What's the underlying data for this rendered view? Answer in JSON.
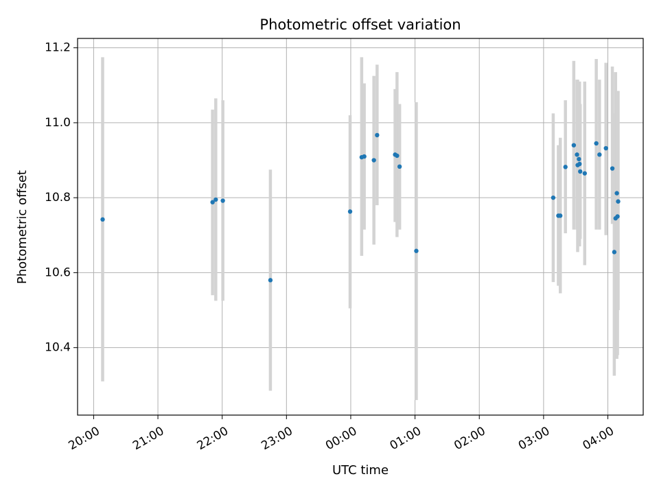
{
  "chart_data": {
    "type": "scatter",
    "title": "Photometric offset variation",
    "xlabel": "UTC time",
    "ylabel": "Photometric offset",
    "x_unit": "hours (UTC, continuing past midnight)",
    "xlim": [
      19.75,
      28.55
    ],
    "ylim": [
      10.22,
      11.225
    ],
    "x_ticks": [
      {
        "value": 20,
        "label": "20:00"
      },
      {
        "value": 21,
        "label": "21:00"
      },
      {
        "value": 22,
        "label": "22:00"
      },
      {
        "value": 23,
        "label": "23:00"
      },
      {
        "value": 24,
        "label": "00:00"
      },
      {
        "value": 25,
        "label": "01:00"
      },
      {
        "value": 26,
        "label": "02:00"
      },
      {
        "value": 27,
        "label": "03:00"
      },
      {
        "value": 28,
        "label": "04:00"
      }
    ],
    "y_ticks": [
      {
        "value": 10.4,
        "label": "10.4"
      },
      {
        "value": 10.6,
        "label": "10.6"
      },
      {
        "value": 10.8,
        "label": "10.8"
      },
      {
        "value": 11.0,
        "label": "11.0"
      },
      {
        "value": 11.2,
        "label": "11.2"
      }
    ],
    "grid": true,
    "point_color": "#1f77b4",
    "errorbar_color": "#d3d3d3",
    "points": [
      {
        "x": 20.14,
        "y": 10.742,
        "ylo": 10.31,
        "yhi": 11.175
      },
      {
        "x": 21.85,
        "y": 10.788,
        "ylo": 10.54,
        "yhi": 11.035
      },
      {
        "x": 21.9,
        "y": 10.795,
        "ylo": 10.525,
        "yhi": 11.065
      },
      {
        "x": 22.01,
        "y": 10.792,
        "ylo": 10.525,
        "yhi": 11.06
      },
      {
        "x": 22.75,
        "y": 10.58,
        "ylo": 10.285,
        "yhi": 10.875
      },
      {
        "x": 23.99,
        "y": 10.763,
        "ylo": 10.505,
        "yhi": 11.02
      },
      {
        "x": 24.17,
        "y": 10.908,
        "ylo": 10.645,
        "yhi": 11.175
      },
      {
        "x": 24.21,
        "y": 10.91,
        "ylo": 10.715,
        "yhi": 11.105
      },
      {
        "x": 24.36,
        "y": 10.9,
        "ylo": 10.675,
        "yhi": 11.125
      },
      {
        "x": 24.41,
        "y": 10.967,
        "ylo": 10.78,
        "yhi": 11.155
      },
      {
        "x": 24.69,
        "y": 10.915,
        "ylo": 10.735,
        "yhi": 11.09
      },
      {
        "x": 24.72,
        "y": 10.912,
        "ylo": 10.695,
        "yhi": 11.135
      },
      {
        "x": 24.76,
        "y": 10.883,
        "ylo": 10.715,
        "yhi": 11.05
      },
      {
        "x": 25.02,
        "y": 10.658,
        "ylo": 10.26,
        "yhi": 11.055
      },
      {
        "x": 27.15,
        "y": 10.8,
        "ylo": 10.575,
        "yhi": 11.025
      },
      {
        "x": 27.23,
        "y": 10.752,
        "ylo": 10.565,
        "yhi": 10.94
      },
      {
        "x": 27.26,
        "y": 10.752,
        "ylo": 10.545,
        "yhi": 10.96
      },
      {
        "x": 27.34,
        "y": 10.882,
        "ylo": 10.705,
        "yhi": 11.06
      },
      {
        "x": 27.47,
        "y": 10.94,
        "ylo": 10.715,
        "yhi": 11.165
      },
      {
        "x": 27.52,
        "y": 10.915,
        "ylo": 10.715,
        "yhi": 11.115
      },
      {
        "x": 27.53,
        "y": 10.887,
        "ylo": 10.655,
        "yhi": 11.115
      },
      {
        "x": 27.55,
        "y": 10.903,
        "ylo": 10.68,
        "yhi": 11.11
      },
      {
        "x": 27.56,
        "y": 10.89,
        "ylo": 10.67,
        "yhi": 11.11
      },
      {
        "x": 27.57,
        "y": 10.87,
        "ylo": 10.69,
        "yhi": 11.05
      },
      {
        "x": 27.64,
        "y": 10.865,
        "ylo": 10.62,
        "yhi": 11.11
      },
      {
        "x": 27.82,
        "y": 10.945,
        "ylo": 10.715,
        "yhi": 11.17
      },
      {
        "x": 27.87,
        "y": 10.915,
        "ylo": 10.715,
        "yhi": 11.115
      },
      {
        "x": 27.97,
        "y": 10.932,
        "ylo": 10.7,
        "yhi": 11.16
      },
      {
        "x": 28.07,
        "y": 10.878,
        "ylo": 10.73,
        "yhi": 11.15
      },
      {
        "x": 28.1,
        "y": 10.655,
        "ylo": 10.325,
        "yhi": 11.025
      },
      {
        "x": 28.12,
        "y": 10.745,
        "ylo": 10.495,
        "yhi": 11.135
      },
      {
        "x": 28.14,
        "y": 10.812,
        "ylo": 10.37,
        "yhi": 11.085
      },
      {
        "x": 28.15,
        "y": 10.75,
        "ylo": 10.38,
        "yhi": 11.08
      },
      {
        "x": 28.16,
        "y": 10.79,
        "ylo": 10.5,
        "yhi": 11.085
      }
    ]
  }
}
